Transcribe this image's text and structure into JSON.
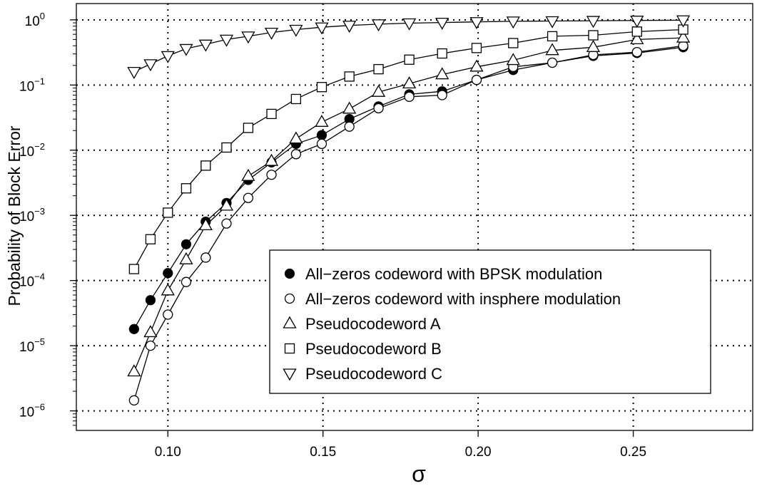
{
  "chart_data": {
    "type": "scatter",
    "xlabel": "σ",
    "ylabel": "Probability of Block Error",
    "y_scale": "log10",
    "x_ticks": [
      "0.10",
      "0.15",
      "0.20",
      "0.25"
    ],
    "x_tick_values": [
      0.1,
      0.15,
      0.2,
      0.25
    ],
    "y_ticks": [
      {
        "value": 1e-06,
        "base": "10",
        "exp": "−6"
      },
      {
        "value": 1e-05,
        "base": "10",
        "exp": "−5"
      },
      {
        "value": 0.0001,
        "base": "10",
        "exp": "−4"
      },
      {
        "value": 0.001,
        "base": "10",
        "exp": "−3"
      },
      {
        "value": 0.01,
        "base": "10",
        "exp": "−2"
      },
      {
        "value": 0.1,
        "base": "10",
        "exp": "−1"
      },
      {
        "value": 1,
        "base": "10",
        "exp": "0"
      }
    ],
    "xlim": [
      0.0705,
      0.2885
    ],
    "ylim_log10": [
      -6.3,
      0.25
    ],
    "grid": true,
    "legend_position": "bottom-right",
    "series": [
      {
        "name": "All−zeros codeword with BPSK modulation",
        "marker": "filled-circle",
        "x": [
          0.0891,
          0.0944,
          0.1,
          0.1059,
          0.1122,
          0.1189,
          0.1259,
          0.1334,
          0.1413,
          0.1496,
          0.1585,
          0.1679,
          0.1778,
          0.1884,
          0.1995,
          0.2113,
          0.2239,
          0.2371,
          0.2512,
          0.2661
        ],
        "y": [
          1.8e-05,
          5e-05,
          0.00013,
          0.00036,
          0.0008,
          0.00155,
          0.0035,
          0.0065,
          0.0125,
          0.017,
          0.03,
          0.047,
          0.072,
          0.08,
          0.12,
          0.17,
          0.22,
          0.28,
          0.31,
          0.38
        ]
      },
      {
        "name": "All−zeros codeword with insphere modulation",
        "marker": "open-circle",
        "x": [
          0.0891,
          0.0944,
          0.1,
          0.1059,
          0.1122,
          0.1189,
          0.1259,
          0.1334,
          0.1413,
          0.1496,
          0.1585,
          0.1679,
          0.1778,
          0.1884,
          0.1995,
          0.2113,
          0.2239,
          0.2371,
          0.2512,
          0.2661
        ],
        "y": [
          1.45e-06,
          1e-05,
          3e-05,
          9.5e-05,
          0.000225,
          0.00075,
          0.00185,
          0.0042,
          0.0087,
          0.0125,
          0.023,
          0.044,
          0.066,
          0.07,
          0.12,
          0.19,
          0.22,
          0.29,
          0.32,
          0.4
        ]
      },
      {
        "name": "Pseudocodeword A",
        "marker": "triangle-up",
        "x": [
          0.0891,
          0.0944,
          0.1,
          0.1059,
          0.1122,
          0.1189,
          0.1259,
          0.1334,
          0.1413,
          0.1496,
          0.1585,
          0.1679,
          0.1778,
          0.1884,
          0.1995,
          0.2113,
          0.2239,
          0.2371,
          0.2512,
          0.2661
        ],
        "y": [
          4e-06,
          1.6e-05,
          7e-05,
          0.00021,
          0.0007,
          0.0014,
          0.004,
          0.0068,
          0.015,
          0.027,
          0.043,
          0.078,
          0.105,
          0.145,
          0.19,
          0.24,
          0.34,
          0.38,
          0.5,
          0.53
        ]
      },
      {
        "name": "Pseudocodeword B",
        "marker": "square",
        "x": [
          0.0891,
          0.0944,
          0.1,
          0.1059,
          0.1122,
          0.1189,
          0.1259,
          0.1334,
          0.1413,
          0.1496,
          0.1585,
          0.1679,
          0.1778,
          0.1884,
          0.1995,
          0.2113,
          0.2239,
          0.2371,
          0.2512,
          0.2661
        ],
        "y": [
          0.00015,
          0.00043,
          0.0011,
          0.0026,
          0.0058,
          0.011,
          0.022,
          0.036,
          0.061,
          0.093,
          0.135,
          0.175,
          0.245,
          0.305,
          0.37,
          0.44,
          0.56,
          0.58,
          0.66,
          0.71
        ]
      },
      {
        "name": "Pseudocodeword C",
        "marker": "triangle-down",
        "x": [
          0.0891,
          0.0944,
          0.1,
          0.1059,
          0.1122,
          0.1189,
          0.1259,
          0.1334,
          0.1413,
          0.1496,
          0.1585,
          0.1679,
          0.1778,
          0.1884,
          0.1995,
          0.2113,
          0.2239,
          0.2371,
          0.2512,
          0.2661
        ],
        "y": [
          0.16,
          0.21,
          0.28,
          0.36,
          0.42,
          0.5,
          0.56,
          0.64,
          0.71,
          0.77,
          0.82,
          0.86,
          0.89,
          0.91,
          0.93,
          0.95,
          0.96,
          0.97,
          0.98,
          0.99
        ]
      }
    ]
  }
}
